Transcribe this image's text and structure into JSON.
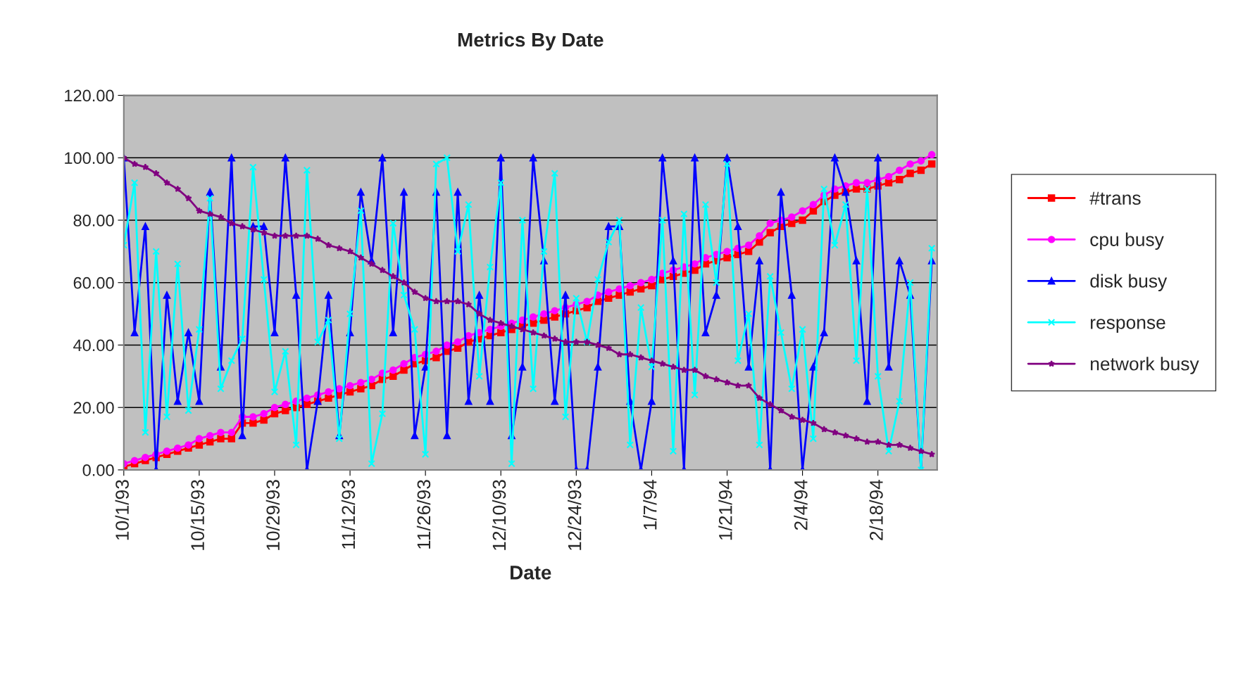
{
  "chart_data": {
    "type": "line",
    "title": "Metrics By Date",
    "xlabel": "Date",
    "x": [
      "1993-10-01",
      "1993-10-03",
      "1993-10-05",
      "1993-10-07",
      "1993-10-09",
      "1993-10-11",
      "1993-10-13",
      "1993-10-15",
      "1993-10-17",
      "1993-10-19",
      "1993-10-21",
      "1993-10-23",
      "1993-10-25",
      "1993-10-27",
      "1993-10-29",
      "1993-10-31",
      "1993-11-02",
      "1993-11-04",
      "1993-11-06",
      "1993-11-08",
      "1993-11-10",
      "1993-11-12",
      "1993-11-14",
      "1993-11-16",
      "1993-11-18",
      "1993-11-20",
      "1993-11-22",
      "1993-11-24",
      "1993-11-26",
      "1993-11-28",
      "1993-11-30",
      "1993-12-02",
      "1993-12-04",
      "1993-12-06",
      "1993-12-08",
      "1993-12-10",
      "1993-12-12",
      "1993-12-14",
      "1993-12-16",
      "1993-12-18",
      "1993-12-20",
      "1993-12-22",
      "1993-12-24",
      "1993-12-26",
      "1993-12-28",
      "1993-12-30",
      "1994-01-01",
      "1994-01-03",
      "1994-01-05",
      "1994-01-07",
      "1994-01-09",
      "1994-01-11",
      "1994-01-13",
      "1994-01-15",
      "1994-01-17",
      "1994-01-19",
      "1994-01-21",
      "1994-01-23",
      "1994-01-25",
      "1994-01-27",
      "1994-01-29",
      "1994-01-31",
      "1994-02-02",
      "1994-02-04",
      "1994-02-06",
      "1994-02-08",
      "1994-02-10",
      "1994-02-12",
      "1994-02-14",
      "1994-02-16",
      "1994-02-18",
      "1994-02-20",
      "1994-02-22",
      "1994-02-24",
      "1994-02-26",
      "1994-02-28"
    ],
    "series": [
      {
        "name": "#trans",
        "color": "#ff0000",
        "marker": "square",
        "values": [
          1,
          2,
          3,
          4,
          5,
          6,
          7,
          8,
          9,
          10,
          10,
          15,
          15,
          16,
          18,
          19,
          20,
          21,
          22,
          23,
          24,
          25,
          26,
          27,
          29,
          30,
          32,
          34,
          35,
          36,
          38,
          39,
          41,
          42,
          43,
          44,
          45,
          46,
          47,
          48,
          49,
          50,
          51,
          52,
          54,
          55,
          56,
          57,
          58,
          59,
          61,
          62,
          63,
          64,
          66,
          67,
          68,
          69,
          70,
          73,
          76,
          78,
          79,
          80,
          83,
          86,
          88,
          89,
          90,
          90,
          91,
          92,
          93,
          95,
          96,
          98
        ]
      },
      {
        "name": "cpu busy",
        "color": "#ff00ff",
        "marker": "circle",
        "values": [
          2,
          3,
          4,
          5,
          6,
          7,
          8,
          10,
          11,
          12,
          12,
          17,
          17,
          18,
          20,
          21,
          22,
          23,
          24,
          25,
          26,
          27,
          28,
          29,
          31,
          32,
          34,
          36,
          37,
          38,
          40,
          41,
          43,
          44,
          45,
          46,
          47,
          48,
          49,
          50,
          51,
          52,
          53,
          54,
          56,
          57,
          58,
          59,
          60,
          61,
          63,
          64,
          65,
          66,
          68,
          69,
          70,
          71,
          72,
          75,
          79,
          80,
          81,
          83,
          85,
          88,
          90,
          91,
          92,
          92,
          93,
          94,
          96,
          98,
          99,
          101
        ]
      },
      {
        "name": "disk busy",
        "color": "#0000ff",
        "marker": "triangle",
        "values": [
          100,
          44,
          78,
          0,
          56,
          22,
          44,
          22,
          89,
          33,
          100,
          11,
          78,
          78,
          44,
          100,
          56,
          0,
          22,
          56,
          11,
          44,
          89,
          67,
          100,
          44,
          89,
          11,
          33,
          89,
          11,
          89,
          22,
          56,
          22,
          100,
          11,
          33,
          100,
          67,
          22,
          56,
          0,
          0,
          33,
          78,
          78,
          22,
          0,
          22,
          100,
          67,
          0,
          100,
          44,
          56,
          100,
          78,
          33,
          67,
          0,
          89,
          56,
          0,
          33,
          44,
          100,
          89,
          67,
          22,
          100,
          33,
          67,
          56,
          0,
          67
        ]
      },
      {
        "name": "response",
        "color": "#00ffff",
        "marker": "cross",
        "values": [
          72,
          92,
          12,
          70,
          17,
          66,
          19,
          45,
          87,
          26,
          35,
          42,
          97,
          61,
          25,
          38,
          8,
          96,
          41,
          48,
          10,
          50,
          83,
          2,
          18,
          79,
          56,
          45,
          5,
          98,
          100,
          70,
          85,
          30,
          65,
          92,
          2,
          80,
          26,
          70,
          95,
          17,
          55,
          41,
          61,
          73,
          80,
          8,
          52,
          33,
          80,
          6,
          82,
          24,
          85,
          60,
          98,
          35,
          50,
          8,
          62,
          44,
          26,
          45,
          10,
          90,
          72,
          85,
          35,
          90,
          30,
          6,
          22,
          60,
          0,
          71
        ]
      },
      {
        "name": "network busy",
        "color": "#800080",
        "marker": "star",
        "values": [
          100,
          98,
          97,
          95,
          92,
          90,
          87,
          83,
          82,
          81,
          79,
          78,
          77,
          76,
          75,
          75,
          75,
          75,
          74,
          72,
          71,
          70,
          68,
          66,
          64,
          62,
          60,
          57,
          55,
          54,
          54,
          54,
          53,
          50,
          48,
          47,
          46,
          45,
          44,
          43,
          42,
          41,
          41,
          41,
          40,
          39,
          37,
          37,
          36,
          35,
          34,
          33,
          32,
          32,
          30,
          29,
          28,
          27,
          27,
          23,
          21,
          19,
          17,
          16,
          15,
          13,
          12,
          11,
          10,
          9,
          9,
          8,
          8,
          7,
          6,
          5
        ]
      }
    ],
    "xlim": [
      "1993-10-01",
      "1994-03-01"
    ],
    "xticks": [
      {
        "value": "1993-10-01",
        "label": "10/1/93"
      },
      {
        "value": "1993-10-15",
        "label": "10/15/93"
      },
      {
        "value": "1993-10-29",
        "label": "10/29/93"
      },
      {
        "value": "1993-11-12",
        "label": "11/12/93"
      },
      {
        "value": "1993-11-26",
        "label": "11/26/93"
      },
      {
        "value": "1993-12-10",
        "label": "12/10/93"
      },
      {
        "value": "1993-12-24",
        "label": "12/24/93"
      },
      {
        "value": "1994-01-07",
        "label": "1/7/94"
      },
      {
        "value": "1994-01-21",
        "label": "1/21/94"
      },
      {
        "value": "1994-02-04",
        "label": "2/4/94"
      },
      {
        "value": "1994-02-18",
        "label": "2/18/94"
      }
    ],
    "ylim": [
      0,
      120
    ],
    "yticks": [
      {
        "value": 0,
        "label": "0.00"
      },
      {
        "value": 20,
        "label": "20.00"
      },
      {
        "value": 40,
        "label": "40.00"
      },
      {
        "value": 60,
        "label": "60.00"
      },
      {
        "value": 80,
        "label": "80.00"
      },
      {
        "value": 100,
        "label": "100.00"
      },
      {
        "value": 120,
        "label": "120.00"
      }
    ],
    "grid": "y",
    "legend": "right",
    "line_style": "solid"
  }
}
